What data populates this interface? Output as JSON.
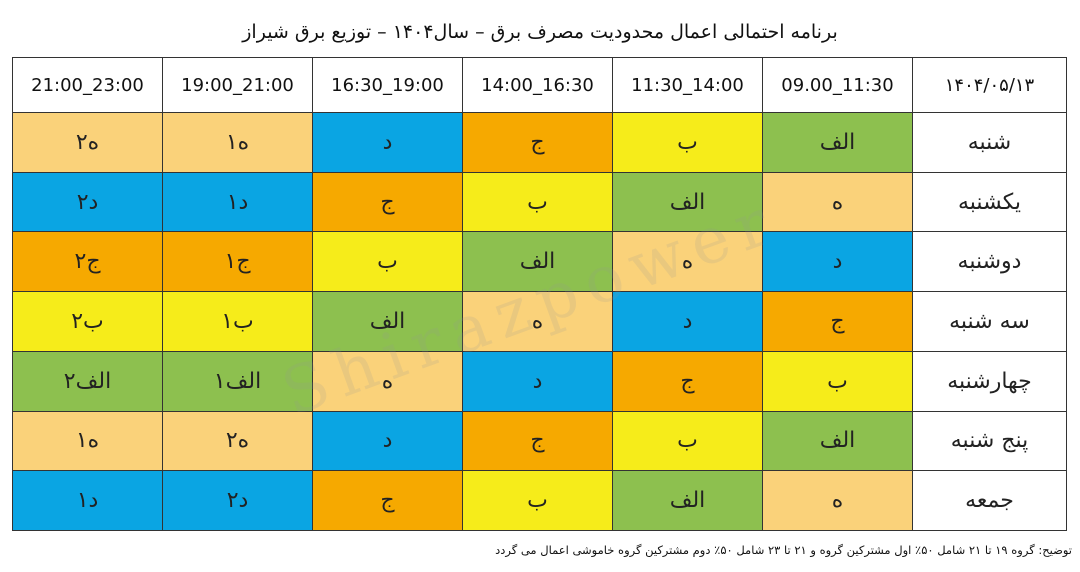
{
  "title": "برنامه احتمالی اعمال محدودیت مصرف برق  –  سال۱۴۰۴ – توزیع برق شیراز",
  "date": "۱۴۰۴/۰۵/۱۳",
  "time_slots": [
    "09.00_11:30",
    "11:30_14:00",
    "14:00_16:30",
    "16:30_19:00",
    "19:00_21:00",
    "21:00_23:00"
  ],
  "rows": [
    {
      "day": "شنبه",
      "cells": [
        {
          "t": "الف",
          "c": "green"
        },
        {
          "t": "ب",
          "c": "yellow"
        },
        {
          "t": "ج",
          "c": "orange"
        },
        {
          "t": "د",
          "c": "blue"
        },
        {
          "t": "ه۱",
          "c": "peach"
        },
        {
          "t": "ه۲",
          "c": "peach"
        }
      ]
    },
    {
      "day": "یکشنبه",
      "cells": [
        {
          "t": "ه",
          "c": "peach"
        },
        {
          "t": "الف",
          "c": "green"
        },
        {
          "t": "ب",
          "c": "yellow"
        },
        {
          "t": "ج",
          "c": "orange"
        },
        {
          "t": "د۱",
          "c": "blue"
        },
        {
          "t": "د۲",
          "c": "blue"
        }
      ]
    },
    {
      "day": "دوشنبه",
      "cells": [
        {
          "t": "د",
          "c": "blue"
        },
        {
          "t": "ه",
          "c": "peach"
        },
        {
          "t": "الف",
          "c": "green"
        },
        {
          "t": "ب",
          "c": "yellow"
        },
        {
          "t": "ج۱",
          "c": "orange"
        },
        {
          "t": "ج۲",
          "c": "orange"
        }
      ]
    },
    {
      "day": "سه شنبه",
      "cells": [
        {
          "t": "ج",
          "c": "orange"
        },
        {
          "t": "د",
          "c": "blue"
        },
        {
          "t": "ه",
          "c": "peach"
        },
        {
          "t": "الف",
          "c": "green"
        },
        {
          "t": "ب۱",
          "c": "yellow"
        },
        {
          "t": "ب۲",
          "c": "yellow"
        }
      ]
    },
    {
      "day": "چهارشنبه",
      "cells": [
        {
          "t": "ب",
          "c": "yellow"
        },
        {
          "t": "ج",
          "c": "orange"
        },
        {
          "t": "د",
          "c": "blue"
        },
        {
          "t": "ه",
          "c": "peach"
        },
        {
          "t": "الف۱",
          "c": "green"
        },
        {
          "t": "الف۲",
          "c": "green"
        }
      ]
    },
    {
      "day": "پنج شنبه",
      "cells": [
        {
          "t": "الف",
          "c": "green"
        },
        {
          "t": "ب",
          "c": "yellow"
        },
        {
          "t": "ج",
          "c": "orange"
        },
        {
          "t": "د",
          "c": "blue"
        },
        {
          "t": "ه۲",
          "c": "peach"
        },
        {
          "t": "ه۱",
          "c": "peach"
        }
      ]
    },
    {
      "day": "جمعه",
      "cells": [
        {
          "t": "ه",
          "c": "peach"
        },
        {
          "t": "الف",
          "c": "green"
        },
        {
          "t": "ب",
          "c": "yellow"
        },
        {
          "t": "ج",
          "c": "orange"
        },
        {
          "t": "د۲",
          "c": "blue"
        },
        {
          "t": "د۱",
          "c": "blue"
        }
      ]
    }
  ],
  "footnote": "توضیح: گروه ۱۹ تا ۲۱ شامل ۵۰٪ اول مشترکین گروه و ۲۱ تا ۲۳ شامل ۵۰٪ دوم مشترکین گروه خاموشی اعمال می گردد",
  "watermark": "Shirazpower",
  "colors": {
    "green": "#8dc04f",
    "yellow": "#f6ec1a",
    "orange": "#f6a900",
    "blue": "#0aa5e3",
    "peach": "#fad27a"
  }
}
